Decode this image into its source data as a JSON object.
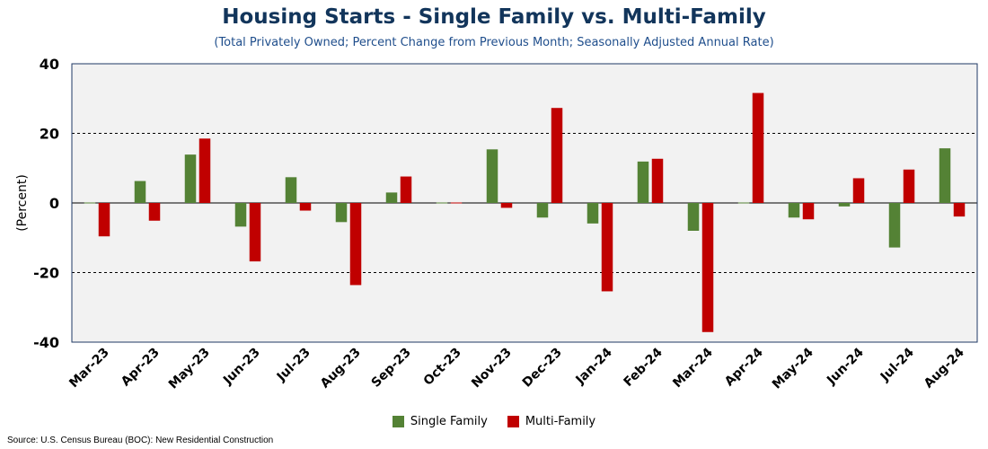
{
  "header": {
    "title": "Housing Starts - Single Family vs. Multi-Family",
    "subtitle": "(Total Privately Owned; Percent Change from Previous Month; Seasonally Adjusted Annual Rate)"
  },
  "source": "Source: U.S. Census Bureau (BOC): New Residential Construction",
  "colors": {
    "single_family": "#548235",
    "multi_family": "#c00000",
    "plot_background": "#f2f2f2",
    "plot_border": "#1f3864"
  },
  "chart_data": {
    "type": "bar",
    "title": "Housing Starts - Single Family vs. Multi-Family",
    "subtitle": "(Total Privately Owned; Percent Change from Previous Month; Seasonally Adjusted Annual Rate)",
    "xlabel": "",
    "ylabel": "(Percent)",
    "ylim": [
      -40,
      40
    ],
    "yticks": [
      40,
      20,
      0,
      -20,
      -40
    ],
    "grid": "horizontal dashed at 20 and -20",
    "legend_position": "bottom",
    "categories": [
      "Mar-23",
      "Apr-23",
      "May-23",
      "Jun-23",
      "Jul-23",
      "Aug-23",
      "Sep-23",
      "Oct-23",
      "Nov-23",
      "Dec-23",
      "Jan-24",
      "Feb-24",
      "Mar-24",
      "Apr-24",
      "May-24",
      "Jun-24",
      "Jul-24",
      "Aug-24"
    ],
    "series": [
      {
        "name": "Single Family",
        "color": "#548235",
        "values": [
          -0.2,
          6.3,
          13.9,
          -6.8,
          7.4,
          -5.5,
          3.0,
          0.0,
          15.4,
          -4.2,
          -5.9,
          11.9,
          -8.0,
          0.0,
          -4.2,
          -1.0,
          -12.8,
          15.7
        ]
      },
      {
        "name": "Multi-Family",
        "color": "#c00000",
        "values": [
          -9.6,
          -5.1,
          18.5,
          -16.8,
          -2.2,
          -23.6,
          7.6,
          0.0,
          -1.4,
          27.3,
          -25.4,
          12.7,
          -37.1,
          31.6,
          -4.7,
          7.1,
          9.6,
          -3.9
        ]
      }
    ]
  }
}
